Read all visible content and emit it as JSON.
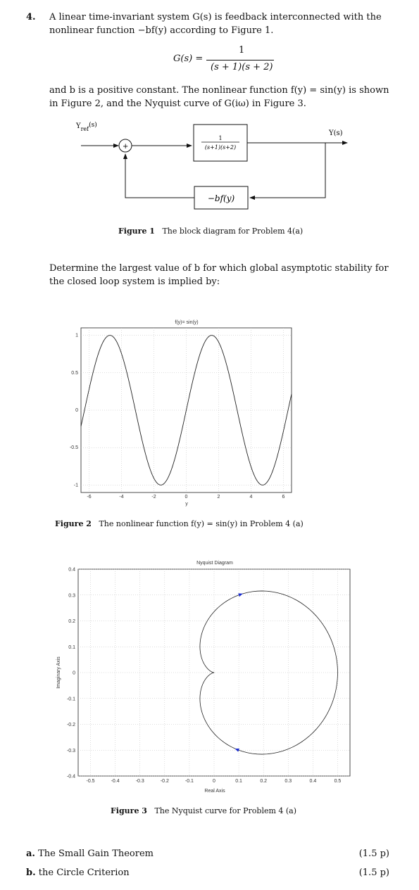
{
  "problem": {
    "number": "4.",
    "intro_line1": "A linear time-invariant system G(s) is feedback interconnected with the",
    "intro_line2": "nonlinear function −bf(y) according to Figure 1.",
    "transfer_lhs": "G(s) =",
    "transfer_num": "1",
    "transfer_den": "(s + 1)(s + 2)",
    "desc_line1": "and b is a positive constant. The nonlinear function f(y) = sin(y) is shown",
    "desc_line2": "in Figure 2, and the Nyquist curve of G(iω) in Figure 3.",
    "question_line1": "Determine the largest value of b for which global asymptotic stability for",
    "question_line2": "the closed loop system is implied by:"
  },
  "figure1": {
    "input_label": "Y",
    "input_sub": "ref",
    "input_suffix": "(s)",
    "output_label": "Y(s)",
    "sum_sign": "+",
    "block_num": "1",
    "block_den": "(s+1)(s+2)",
    "feedback_label": "−bf(y)",
    "caption_bold": "Figure 1",
    "caption_text": "The block diagram for Problem 4(a)"
  },
  "figure2": {
    "caption_bold": "Figure 2",
    "caption_text": "The nonlinear function f(y) = sin(y) in Problem 4 (a)",
    "chart_title": "f(y)= sin(y)",
    "xlabel": "y"
  },
  "figure3": {
    "caption_bold": "Figure 3",
    "caption_text": "The Nyquist curve for Problem 4 (a)"
  },
  "chart_data": [
    {
      "type": "line",
      "title": "f(y)= sin(y)",
      "xlabel": "y",
      "ylabel": "",
      "xlim": [
        -6.5,
        6.5
      ],
      "ylim": [
        -1.1,
        1.1
      ],
      "xticks": [
        "-6",
        "-4",
        "-2",
        "0",
        "2",
        "4",
        "6"
      ],
      "yticks": [
        "1",
        "0.5",
        "0",
        "-0.5",
        "-1"
      ],
      "grid": true,
      "series": [
        {
          "function": "sin(y)",
          "x_range": [
            -6.5,
            6.5
          ]
        }
      ]
    },
    {
      "type": "line",
      "title": "Nyquist Diagram",
      "xlabel": "Real Axis",
      "ylabel": "Imaginary Axis",
      "xlim": [
        -0.55,
        0.55
      ],
      "ylim": [
        -0.4,
        0.4
      ],
      "xticks": [
        "-0.5",
        "-0.4",
        "-0.3",
        "-0.2",
        "-0.1",
        "0",
        "0.1",
        "0.2",
        "0.3",
        "0.4",
        "0.5"
      ],
      "yticks": [
        "0.4",
        "0.3",
        "0.2",
        "0.1",
        "0",
        "-0.1",
        "-0.2",
        "-0.3",
        "-0.4"
      ],
      "grid": true,
      "series": [
        {
          "function": "G(iω) = 1/((iω+1)(iω+2))",
          "omega_range": "(-∞, ∞)"
        }
      ]
    }
  ],
  "parts": [
    {
      "label": "a.",
      "text": "The Small Gain Theorem",
      "points": "(1.5 p)"
    },
    {
      "label": "b.",
      "text": "the Circle Criterion",
      "points": "(1.5 p)"
    }
  ]
}
